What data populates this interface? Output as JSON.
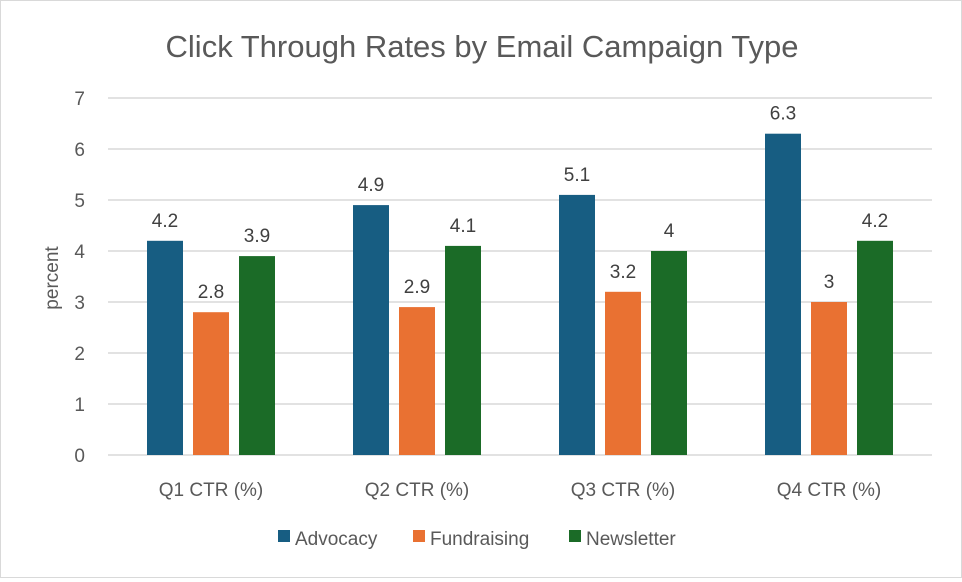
{
  "chart_data": {
    "type": "bar",
    "title": "Click Through Rates by Email Campaign Type",
    "xlabel": "",
    "ylabel": "percent",
    "ylim": [
      0,
      7
    ],
    "yticks": [
      "0",
      "1",
      "2",
      "3",
      "4",
      "5",
      "6",
      "7"
    ],
    "grid": true,
    "legend_position": "bottom",
    "categories": [
      "Q1 CTR (%)",
      "Q2 CTR (%)",
      "Q3 CTR (%)",
      "Q4 CTR (%)"
    ],
    "series": [
      {
        "name": "Advocacy",
        "color": "#175d82",
        "values": [
          4.2,
          4.9,
          5.1,
          6.3
        ],
        "labels": [
          "4.2",
          "4.9",
          "5.1",
          "6.3"
        ]
      },
      {
        "name": "Fundraising",
        "color": "#e97132",
        "values": [
          2.8,
          2.9,
          3.2,
          3.0
        ],
        "labels": [
          "2.8",
          "2.9",
          "3.2",
          "3"
        ]
      },
      {
        "name": "Newsletter",
        "color": "#1b6b27",
        "values": [
          3.9,
          4.1,
          4.0,
          4.2
        ],
        "labels": [
          "3.9",
          "4.1",
          "4",
          "4.2"
        ]
      }
    ]
  }
}
